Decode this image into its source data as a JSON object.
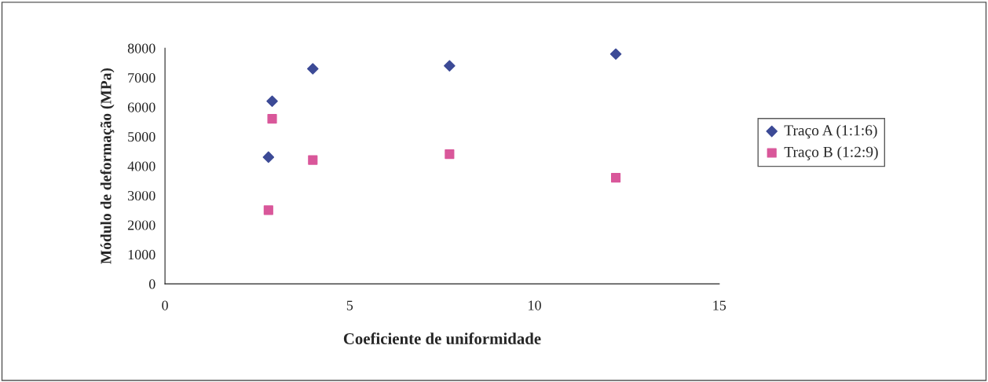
{
  "chart_data": {
    "type": "scatter",
    "xlabel": "Coeficiente de uniformidade",
    "ylabel": "Módulo de deformação (MPa)",
    "xlim": [
      0,
      15
    ],
    "xticks": [
      0,
      5,
      10,
      15
    ],
    "ylim": [
      0,
      8000
    ],
    "yticks": [
      0,
      1000,
      2000,
      3000,
      4000,
      5000,
      6000,
      7000,
      8000
    ],
    "grid": false,
    "legend": "right",
    "series": [
      {
        "name": "Traço A (1:1:6)",
        "color": "#3c4a96",
        "marker": "diamond",
        "x": [
          2.9,
          2.8,
          4.0,
          7.7,
          12.2
        ],
        "values": [
          6200,
          4300,
          7300,
          7400,
          7800
        ]
      },
      {
        "name": "Traço B (1:2:9)",
        "color": "#d9579a",
        "marker": "square",
        "x": [
          2.9,
          2.8,
          4.0,
          7.7,
          12.2
        ],
        "values": [
          5600,
          2500,
          4200,
          4400,
          3600
        ]
      }
    ]
  }
}
